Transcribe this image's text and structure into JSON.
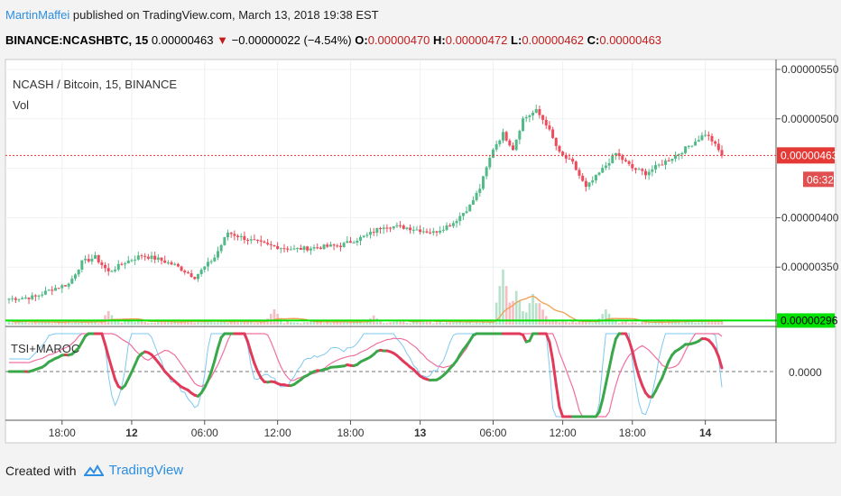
{
  "header": {
    "author": "MartinMaffei",
    "published_text": " published on TradingView.com, March 13, 2018 19:38 EST"
  },
  "ticker": {
    "symbol": "BINANCE:NCASHBTC, 15",
    "last": "0.00000463",
    "change": "−0.00000022 (−4.54%)",
    "open_label": "O:",
    "open": "0.00000470",
    "high_label": "H:",
    "high": "0.00000472",
    "low_label": "L:",
    "low": "0.00000462",
    "close_label": "C:",
    "close": "0.00000463"
  },
  "legend": {
    "pair": "NCASH / Bitcoin, 15, BINANCE",
    "volume": "Vol",
    "indicator": "TSI+MAROC"
  },
  "price_axis": {
    "ticks": [
      "0.00000550",
      "0.00000500",
      "0.00000400",
      "0.00000350"
    ],
    "last_price_label": "0.00000463",
    "countdown": "06:32",
    "green_line_label": "0.00000296"
  },
  "indicator_axis": {
    "zero_label": "0.0000"
  },
  "time_axis": {
    "ticks": [
      "18:00",
      "12",
      "06:00",
      "12:00",
      "18:00",
      "13",
      "06:00",
      "12:00",
      "18:00",
      "14"
    ]
  },
  "footer": {
    "created_with": "Created with",
    "brand": "TradingView"
  },
  "colors": {
    "up": "#53b987",
    "down": "#eb4d5c",
    "last_price": "#e53935",
    "volume_ma": "#f0a050",
    "green_line": "#00e200",
    "tsi_main": "#e23a5a",
    "tsi_signal": "#f06fa0",
    "tsi_fast": "#7ec8f2",
    "accent": "#2c8fe3"
  },
  "chart_data": {
    "type": "candlestick",
    "title": "NCASH / Bitcoin, 15, BINANCE",
    "ylim": [
      2.9e-06,
      5.6e-06
    ],
    "close_anchors": [
      [
        0,
        3.18e-06
      ],
      [
        8,
        3.2e-06
      ],
      [
        13,
        3.28e-06
      ],
      [
        18,
        3.33e-06
      ],
      [
        22,
        3.55e-06
      ],
      [
        26,
        3.6e-06
      ],
      [
        30,
        3.45e-06
      ],
      [
        35,
        3.55e-06
      ],
      [
        40,
        3.62e-06
      ],
      [
        45,
        3.58e-06
      ],
      [
        50,
        3.52e-06
      ],
      [
        56,
        3.4e-06
      ],
      [
        62,
        3.6e-06
      ],
      [
        66,
        3.85e-06
      ],
      [
        72,
        3.78e-06
      ],
      [
        78,
        3.72e-06
      ],
      [
        86,
        3.68e-06
      ],
      [
        93,
        3.7e-06
      ],
      [
        100,
        3.72e-06
      ],
      [
        108,
        3.82e-06
      ],
      [
        113,
        3.92e-06
      ],
      [
        120,
        3.9e-06
      ],
      [
        128,
        3.85e-06
      ],
      [
        134,
        3.95e-06
      ],
      [
        139,
        4.12e-06
      ],
      [
        142,
        4.3e-06
      ],
      [
        146,
        4.7e-06
      ],
      [
        149,
        4.85e-06
      ],
      [
        152,
        4.7e-06
      ],
      [
        155,
        5e-06
      ],
      [
        159,
        5.08e-06
      ],
      [
        162,
        4.95e-06
      ],
      [
        166,
        4.65e-06
      ],
      [
        170,
        4.55e-06
      ],
      [
        174,
        4.3e-06
      ],
      [
        178,
        4.45e-06
      ],
      [
        183,
        4.65e-06
      ],
      [
        188,
        4.5e-06
      ],
      [
        192,
        4.45e-06
      ],
      [
        197,
        4.55e-06
      ],
      [
        202,
        4.65e-06
      ],
      [
        206,
        4.75e-06
      ],
      [
        210,
        4.85e-06
      ],
      [
        212,
        4.78e-06
      ],
      [
        215,
        4.63e-06
      ]
    ],
    "candle_count": 216,
    "last_price": 4.63e-06,
    "green_line": 2.96e-06,
    "volume_spikes": [
      [
        149,
        0.9
      ],
      [
        153,
        0.55
      ],
      [
        158,
        0.5
      ],
      [
        160,
        0.35
      ],
      [
        80,
        0.25
      ],
      [
        30,
        0.22
      ],
      [
        110,
        0.15
      ],
      [
        180,
        0.25
      ]
    ],
    "time_ticks_index": [
      16,
      37,
      59,
      81,
      103,
      124,
      146,
      167,
      188,
      210
    ]
  }
}
